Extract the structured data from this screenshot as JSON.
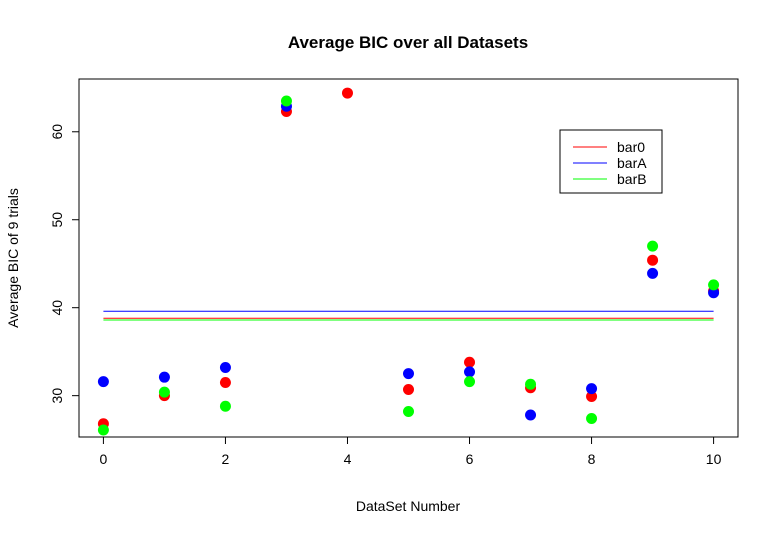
{
  "chart_data": {
    "type": "scatter",
    "title": "Average BIC over all Datasets",
    "xlabel": "DataSet Number",
    "ylabel": "Average BIC of 9 trials",
    "xlim": [
      -0.4,
      10.4
    ],
    "ylim": [
      25.3,
      66.0
    ],
    "x_ticks": [
      0,
      2,
      4,
      6,
      8,
      10
    ],
    "y_ticks": [
      30,
      40,
      50,
      60
    ],
    "grid": false,
    "legend_position": "top-right",
    "series": [
      {
        "name": "bar0",
        "color": "#ff0000",
        "x": [
          0,
          1,
          2,
          3,
          4,
          5,
          6,
          7,
          8,
          9,
          10
        ],
        "values": [
          26.8,
          30.0,
          31.5,
          62.3,
          64.4,
          30.7,
          33.8,
          30.9,
          29.9,
          45.4,
          41.9
        ],
        "mean_line": 38.8
      },
      {
        "name": "barA",
        "color": "#0000ff",
        "x": [
          0,
          1,
          2,
          3,
          5,
          6,
          7,
          8,
          9,
          10
        ],
        "values": [
          31.6,
          32.1,
          33.2,
          62.9,
          32.5,
          32.7,
          27.8,
          30.8,
          43.9,
          41.7
        ],
        "mean_line": 39.6
      },
      {
        "name": "barB",
        "color": "#00ff00",
        "x": [
          0,
          1,
          2,
          3,
          5,
          6,
          7,
          8,
          9,
          10
        ],
        "values": [
          26.1,
          30.4,
          28.8,
          63.5,
          28.2,
          31.6,
          31.3,
          27.4,
          47.0,
          42.6
        ],
        "mean_line": 38.6
      }
    ]
  }
}
